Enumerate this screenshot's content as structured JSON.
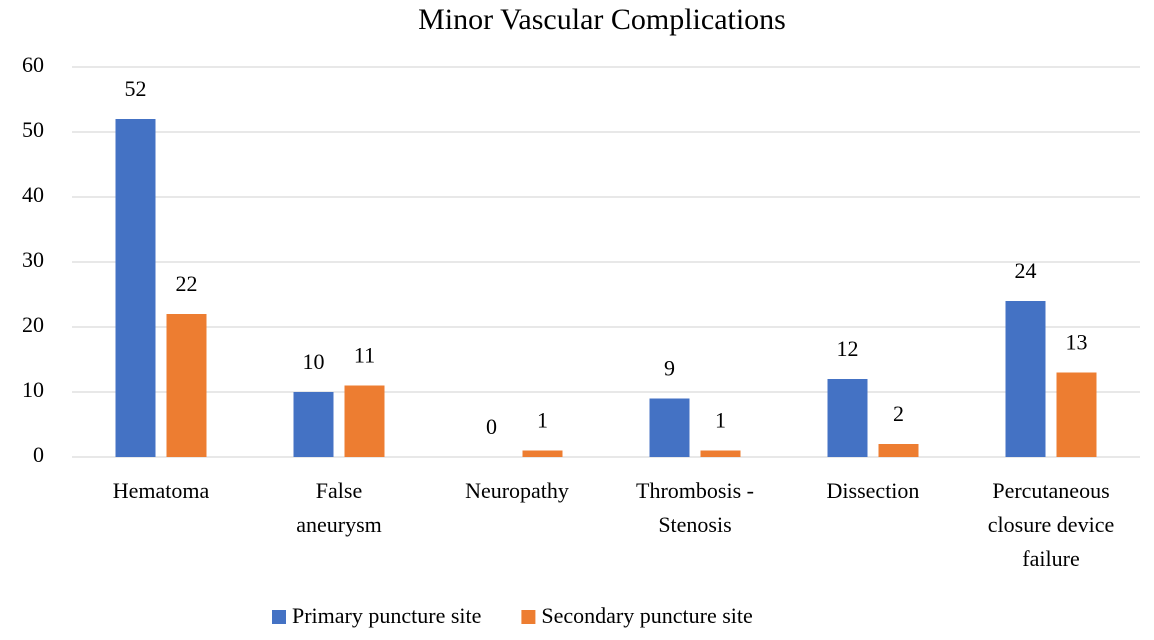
{
  "chart_data": {
    "type": "bar",
    "title": "Minor Vascular Complications",
    "categories": [
      [
        "Hematoma"
      ],
      [
        "False",
        "aneurysm"
      ],
      [
        "Neuropathy"
      ],
      [
        "Thrombosis -",
        "Stenosis"
      ],
      [
        "Dissection"
      ],
      [
        "Percutaneous",
        "closure device",
        "failure"
      ]
    ],
    "series": [
      {
        "name": "Primary puncture site",
        "color": "#4472c4",
        "values": [
          52,
          10,
          0,
          9,
          12,
          24
        ]
      },
      {
        "name": "Secondary puncture site",
        "color": "#ed7d31",
        "values": [
          22,
          11,
          1,
          1,
          2,
          13
        ]
      }
    ],
    "ylim": [
      0,
      60
    ],
    "yticks": [
      0,
      10,
      20,
      30,
      40,
      50,
      60
    ],
    "grid": true,
    "legend": "bottom"
  }
}
